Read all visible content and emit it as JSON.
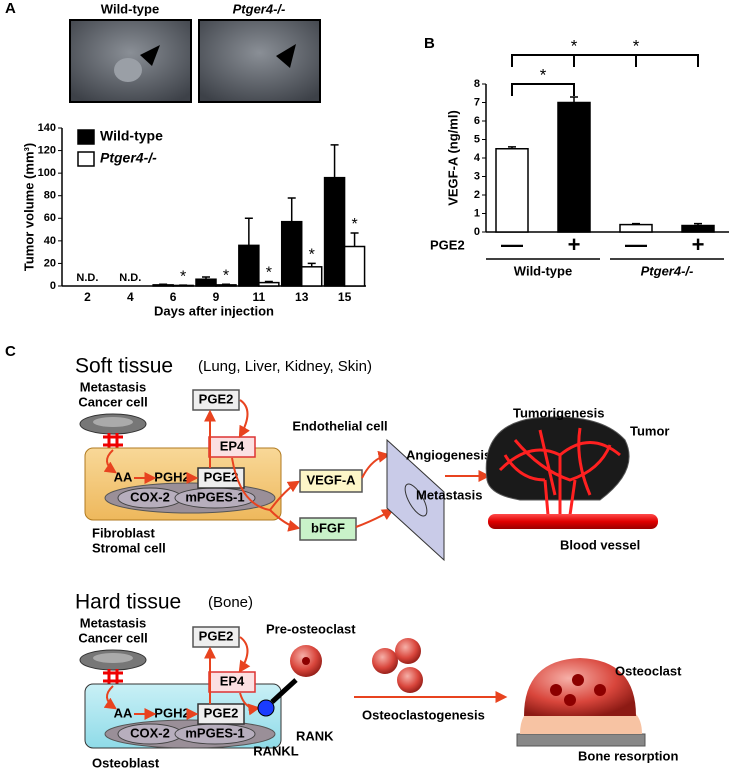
{
  "panel_labels": [
    "A",
    "B",
    "C"
  ],
  "photos": {
    "labels": [
      "Wild-type",
      "Ptger4-/-"
    ]
  },
  "chart_data": [
    {
      "type": "bar",
      "categories": [
        "2",
        "4",
        "6",
        "9",
        "11",
        "13",
        "15"
      ],
      "series": [
        {
          "name": "Wild-type",
          "color": "#000000",
          "values": [
            null,
            null,
            1,
            6,
            36,
            57,
            96
          ],
          "errors": [
            null,
            null,
            0.5,
            2,
            24,
            21,
            29
          ]
        },
        {
          "name": "Ptger4-/-",
          "color": "#ffffff",
          "values": [
            null,
            null,
            0.5,
            1,
            3,
            17,
            35
          ],
          "errors": [
            null,
            null,
            0.3,
            0.5,
            1,
            3,
            12
          ]
        }
      ],
      "annotations": [
        "N.D.",
        "N.D.",
        "*",
        "*",
        "*",
        "*",
        "*"
      ],
      "xlabel": "Days after injection",
      "ylabel": "Tumor volume (mm³)",
      "ylim": [
        0,
        140
      ],
      "yticks": [
        0,
        20,
        40,
        60,
        80,
        100,
        120,
        140
      ]
    },
    {
      "type": "bar",
      "categories": [
        "—",
        "+",
        "—",
        "+"
      ],
      "values": [
        4.5,
        7.0,
        0.4,
        0.35
      ],
      "errors": [
        0.1,
        0.3,
        0.05,
        0.1
      ],
      "colors": [
        "#ffffff",
        "#000000",
        "#ffffff",
        "#000000"
      ],
      "row_label": "PGE2",
      "groups": [
        "Wild-type",
        "Ptger4-/-"
      ],
      "significance": [
        {
          "label": "*",
          "pair": [
            0,
            2
          ]
        },
        {
          "label": "*",
          "pair": [
            0,
            1
          ]
        },
        {
          "label": "*",
          "pair": [
            1,
            3
          ]
        }
      ],
      "ylabel": "VEGF-A (ng/ml)",
      "ylim": [
        0,
        8
      ],
      "yticks": [
        0,
        1,
        2,
        3,
        4,
        5,
        6,
        7,
        8
      ]
    }
  ],
  "diagram": {
    "soft": {
      "title": "Soft tissue",
      "subtitle": "(Lung, Liver, Kidney, Skin)",
      "cancer": [
        "Metastasis",
        "Cancer cell"
      ],
      "pge2_out": "PGE2",
      "ep4": "EP4",
      "aa": "AA",
      "pgh2": "PGH2",
      "pge2_in": "PGE2",
      "cox2": "COX-2",
      "mpges": "mPGES-1",
      "cell": [
        "Fibroblast",
        "Stromal cell"
      ],
      "vegf": "VEGF-A",
      "bfgf": "bFGF",
      "endothelial": "Endothelial cell",
      "angiogenesis": "Angiogenesis",
      "metastasis": "Metastasis",
      "tumorigenesis": "Tumorigenesis",
      "tumor": "Tumor",
      "vessel": "Blood vessel"
    },
    "hard": {
      "title": "Hard tissue",
      "subtitle": "(Bone)",
      "cancer": [
        "Metastasis",
        "Cancer cell"
      ],
      "pge2_out": "PGE2",
      "ep4": "EP4",
      "aa": "AA",
      "pgh2": "PGH2",
      "pge2_in": "PGE2",
      "cox2": "COX-2",
      "mpges": "mPGES-1",
      "cell": "Osteoblast",
      "rankl": "RANKL",
      "rank": "RANK",
      "preosteoclast": "Pre-osteoclast",
      "osteoclastogenesis": "Osteoclastogenesis",
      "osteoclast": "Osteoclast",
      "resorption": "Bone resorption"
    }
  }
}
